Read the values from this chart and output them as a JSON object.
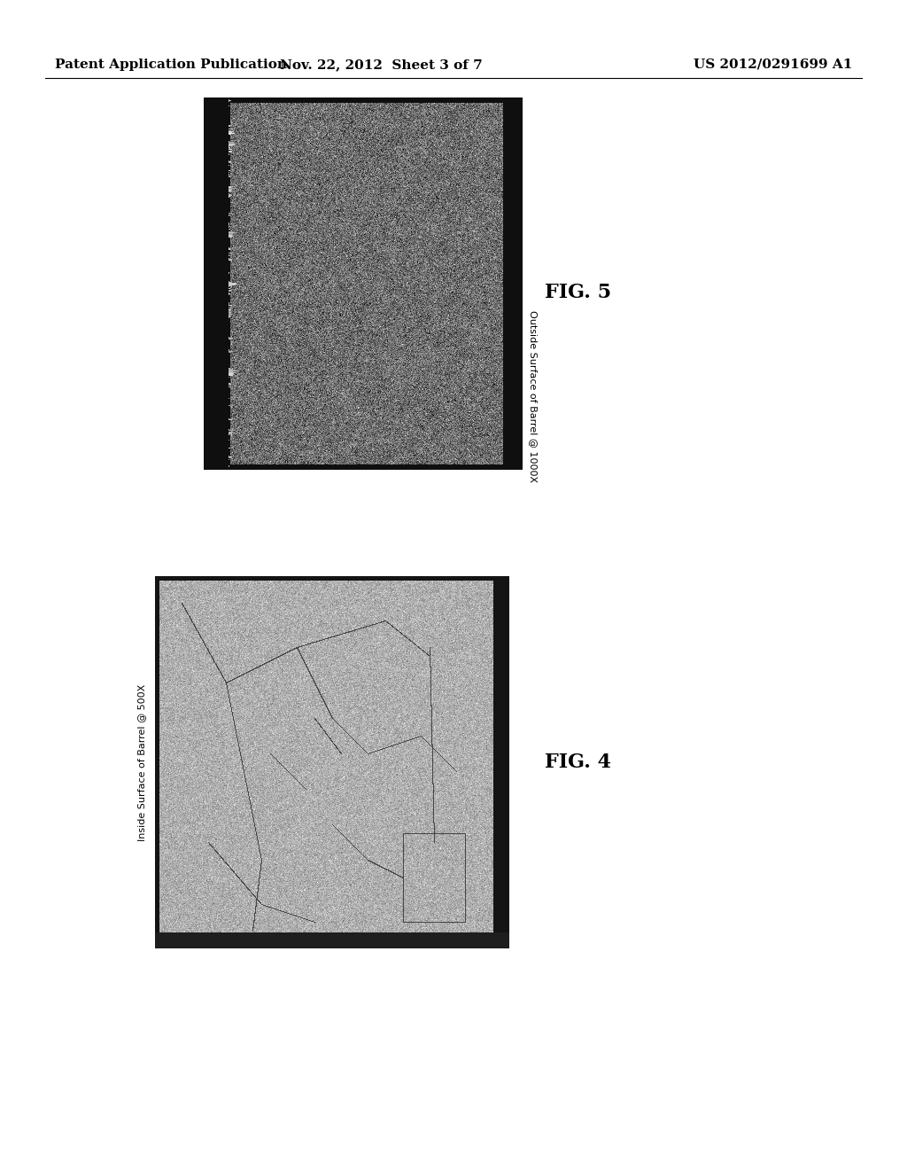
{
  "background_color": "#ffffff",
  "header_left": "Patent Application Publication",
  "header_center": "Nov. 22, 2012  Sheet 3 of 7",
  "header_right": "US 2012/0291699 A1",
  "fig4_label": "FIG. 4",
  "fig5_label": "FIG. 5",
  "fig4_caption": "Inside Surface of Barrel @ 500X",
  "fig5_caption": "Outside Surface of Barrel @ 1000X",
  "header_fontsize": 11,
  "fig_label_fontsize": 16,
  "caption_fontsize": 8
}
